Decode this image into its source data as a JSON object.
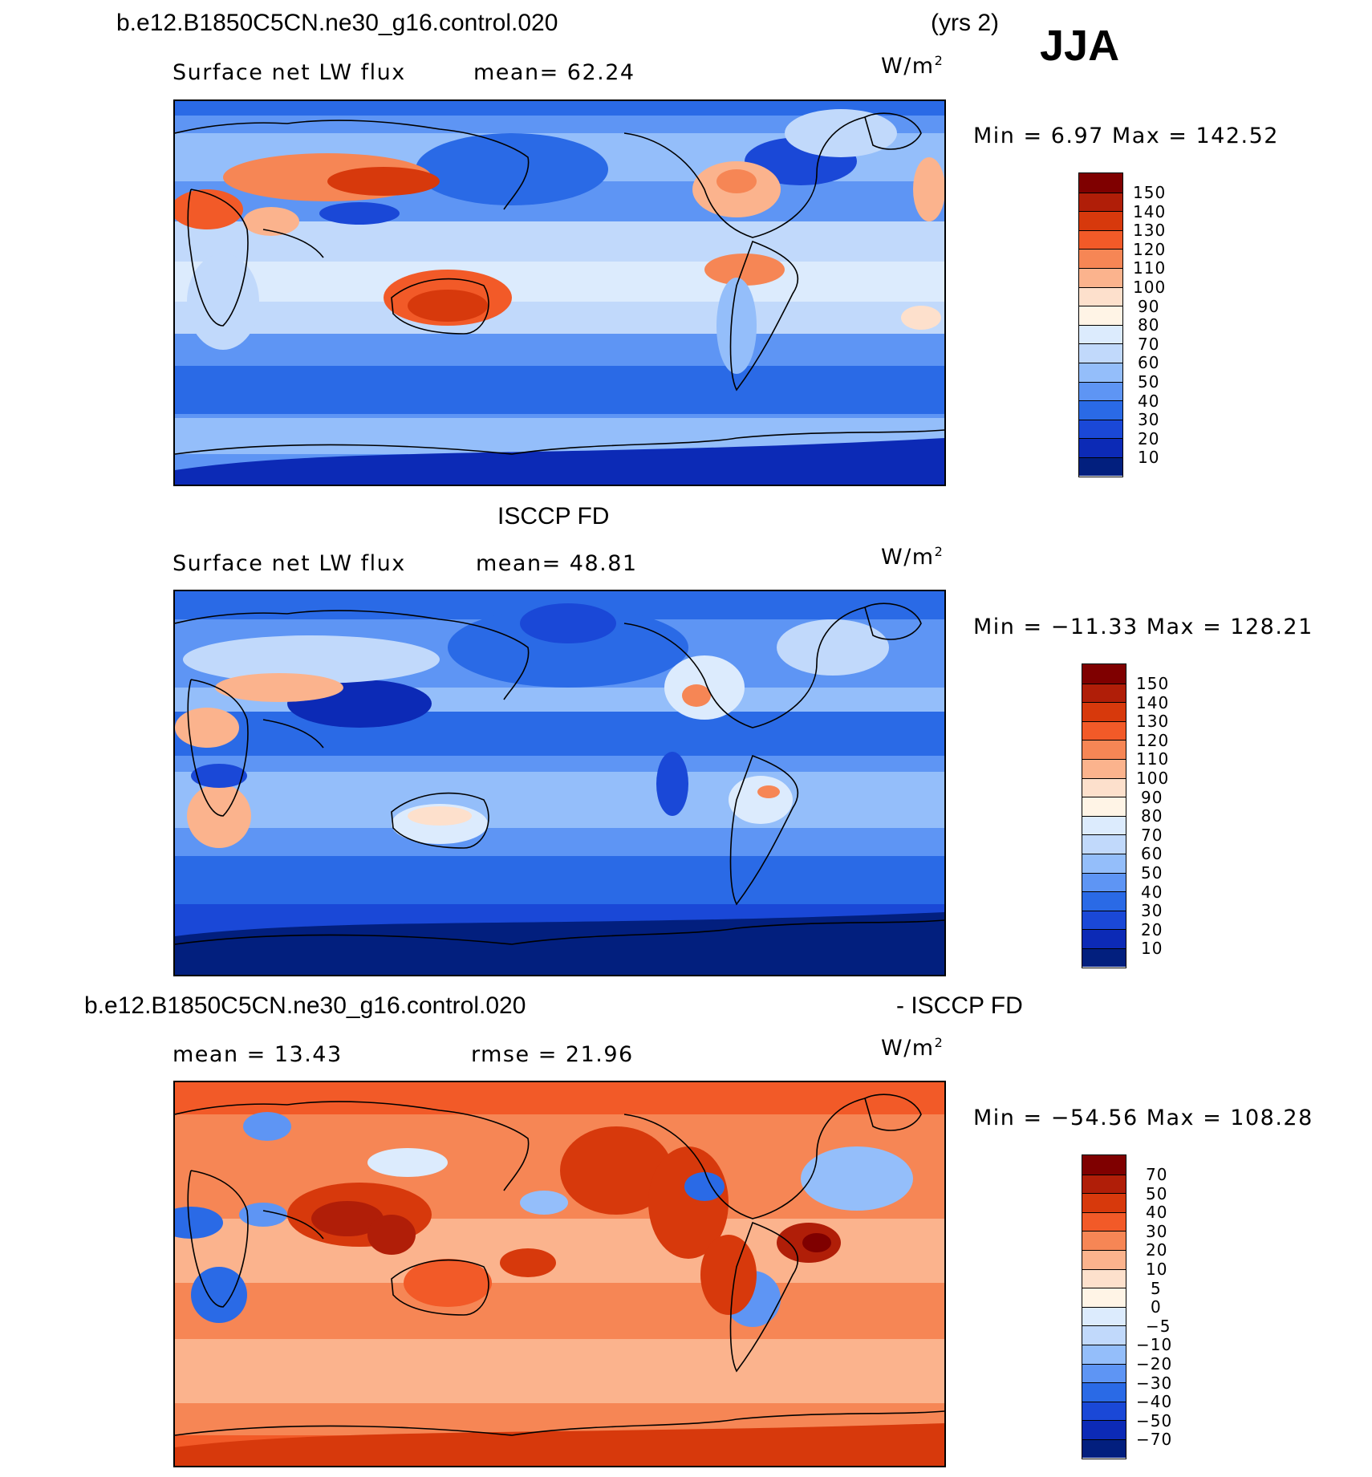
{
  "figure": {
    "case_name": "b.e12.B1850C5CN.ne30_g16.control.020",
    "years": "(yrs 2)",
    "season": "JJA"
  },
  "panels": [
    {
      "heading": "",
      "variable": "Surface net LW flux",
      "stat1": "mean=  62.24",
      "stat2": "",
      "units": "W/m",
      "units_sup": "2",
      "minmax": "Min =   6.97 Max = 142.52",
      "levels": [
        "150",
        "140",
        "130",
        "120",
        "110",
        "100",
        "90",
        "80",
        "70",
        "60",
        "50",
        "40",
        "30",
        "20",
        "10"
      ],
      "colors": [
        "#7f0000",
        "#b01e08",
        "#d7390c",
        "#f25a28",
        "#f68655",
        "#fbb38d",
        "#fde0cc",
        "#fff4e6",
        "#dcebfd",
        "#c1d9fb",
        "#94befa",
        "#5e95f4",
        "#2a6ae6",
        "#1a48d7",
        "#0c2ab6",
        "#021f7e"
      ]
    },
    {
      "heading": "ISCCP FD",
      "variable": "Surface net LW flux",
      "stat1": "mean=  48.81",
      "stat2": "",
      "units": "W/m",
      "units_sup": "2",
      "minmax": "Min = −11.33 Max = 128.21",
      "levels": [
        "150",
        "140",
        "130",
        "120",
        "110",
        "100",
        "90",
        "80",
        "70",
        "60",
        "50",
        "40",
        "30",
        "20",
        "10"
      ],
      "colors": [
        "#7f0000",
        "#b01e08",
        "#d7390c",
        "#f25a28",
        "#f68655",
        "#fbb38d",
        "#fde0cc",
        "#fff4e6",
        "#dcebfd",
        "#c1d9fb",
        "#94befa",
        "#5e95f4",
        "#2a6ae6",
        "#1a48d7",
        "#0c2ab6",
        "#021f7e"
      ]
    },
    {
      "heading": "b.e12.B1850C5CN.ne30_g16.control.020",
      "heading_right": "- ISCCP FD",
      "variable": "",
      "stat1": "mean =  13.43",
      "stat2": "rmse =  21.96",
      "units": "W/m",
      "units_sup": "2",
      "minmax": "Min = −54.56 Max = 108.28",
      "levels": [
        "70",
        "50",
        "40",
        "30",
        "20",
        "10",
        "5",
        "0",
        "−5",
        "−10",
        "−20",
        "−30",
        "−40",
        "−50",
        "−70"
      ],
      "colors": [
        "#7f0000",
        "#b01e08",
        "#d7390c",
        "#f25a28",
        "#f68655",
        "#fbb38d",
        "#fde0cc",
        "#fff4e6",
        "#dcebfd",
        "#c1d9fb",
        "#94befa",
        "#5e95f4",
        "#2a6ae6",
        "#1a48d7",
        "#0c2ab6",
        "#021f7e"
      ]
    }
  ]
}
